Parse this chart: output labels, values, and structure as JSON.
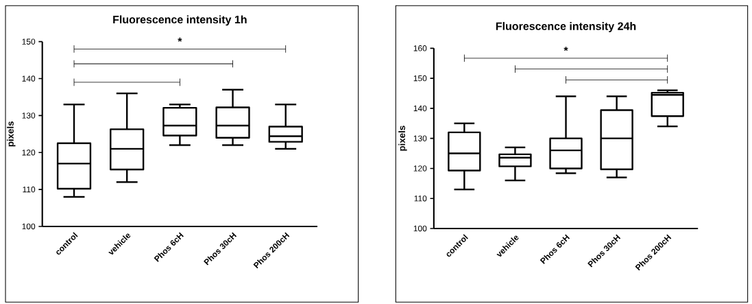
{
  "chart_data": [
    {
      "type": "box",
      "title": "Fluorescence intensity 1h",
      "ylabel": "pixels",
      "categories": [
        "control",
        "vehicle",
        "Phos 6cH",
        "Phos 30cH",
        "Phos 200cH"
      ],
      "boxes": [
        {
          "low": 108,
          "q1": 110.2,
          "median": 117,
          "q3": 122.5,
          "high": 133
        },
        {
          "low": 112,
          "q1": 115.4,
          "median": 121,
          "q3": 126.3,
          "high": 136
        },
        {
          "low": 122,
          "q1": 124.6,
          "median": 127.3,
          "q3": 132.1,
          "high": 133
        },
        {
          "low": 122,
          "q1": 124,
          "median": 127.3,
          "q3": 132.2,
          "high": 137
        },
        {
          "low": 121,
          "q1": 122.9,
          "median": 124.4,
          "q3": 127,
          "high": 133
        }
      ],
      "color": "#000000",
      "ylim": [
        100,
        150
      ],
      "yticks": [
        100,
        110,
        120,
        130,
        140,
        150
      ],
      "annotations": [
        "*"
      ]
    },
    {
      "type": "box",
      "title": "Fluorescence intensity 24h",
      "ylabel": "pixels",
      "categories": [
        "control",
        "vehicle",
        "Phos 6cH",
        "Phos 30cH",
        "Phos 200cH"
      ],
      "boxes": [
        {
          "low": 113,
          "q1": 119.3,
          "median": 125,
          "q3": 132,
          "high": 135
        },
        {
          "low": 116,
          "q1": 120.7,
          "median": 123.6,
          "q3": 124.7,
          "high": 127
        },
        {
          "low": 118.4,
          "q1": 120,
          "median": 126,
          "q3": 130,
          "high": 144
        },
        {
          "low": 117,
          "q1": 119.7,
          "median": 130,
          "q3": 139.4,
          "high": 144
        },
        {
          "low": 134,
          "q1": 137.4,
          "median": 144.5,
          "q3": 145.2,
          "high": 146
        }
      ],
      "color": "#000000",
      "ylim": [
        100,
        160
      ],
      "yticks": [
        100,
        110,
        120,
        130,
        140,
        150,
        160
      ],
      "annotations": [
        "*"
      ]
    }
  ]
}
